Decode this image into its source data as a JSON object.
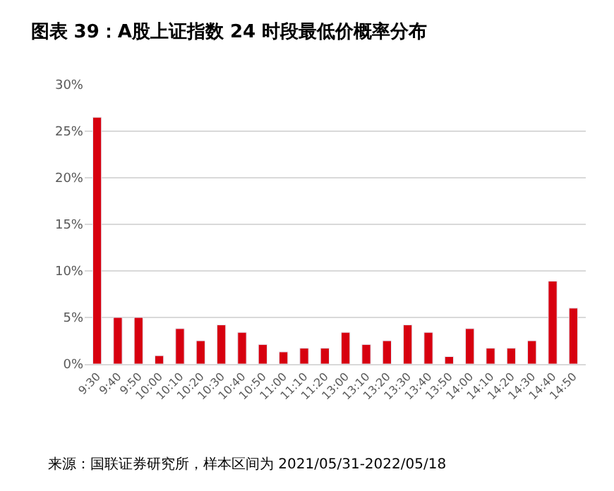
{
  "chart_data": {
    "type": "bar",
    "title": "图表 39：A股上证指数 24 时段最低价概率分布",
    "categories": [
      "9:30",
      "9:40",
      "9:50",
      "10:00",
      "10:10",
      "10:20",
      "10:30",
      "10:40",
      "10:50",
      "11:00",
      "11:10",
      "11:20",
      "13:00",
      "13:10",
      "13:20",
      "13:30",
      "13:40",
      "13:50",
      "14:00",
      "14:10",
      "14:20",
      "14:30",
      "14:40",
      "14:50"
    ],
    "values": [
      26.5,
      5.0,
      5.0,
      0.9,
      3.8,
      2.5,
      4.2,
      3.4,
      2.1,
      1.3,
      1.7,
      1.7,
      3.4,
      2.1,
      2.5,
      4.2,
      3.4,
      0.8,
      3.8,
      1.7,
      1.7,
      2.5,
      8.9,
      6.0
    ],
    "color": "#d7000f",
    "ylim": [
      0,
      30
    ],
    "yticks": [
      {
        "value": 0,
        "label": "0%"
      },
      {
        "value": 5,
        "label": "5%"
      },
      {
        "value": 10,
        "label": "10%"
      },
      {
        "value": 15,
        "label": "15%"
      },
      {
        "value": 20,
        "label": "20%"
      },
      {
        "value": 25,
        "label": "25%"
      },
      {
        "value": 30,
        "label": "30%"
      }
    ],
    "grid": "y",
    "annotations": [
      "来源：国联证券研究所，样本区间为 2021/05/31-2022/05/18"
    ]
  }
}
